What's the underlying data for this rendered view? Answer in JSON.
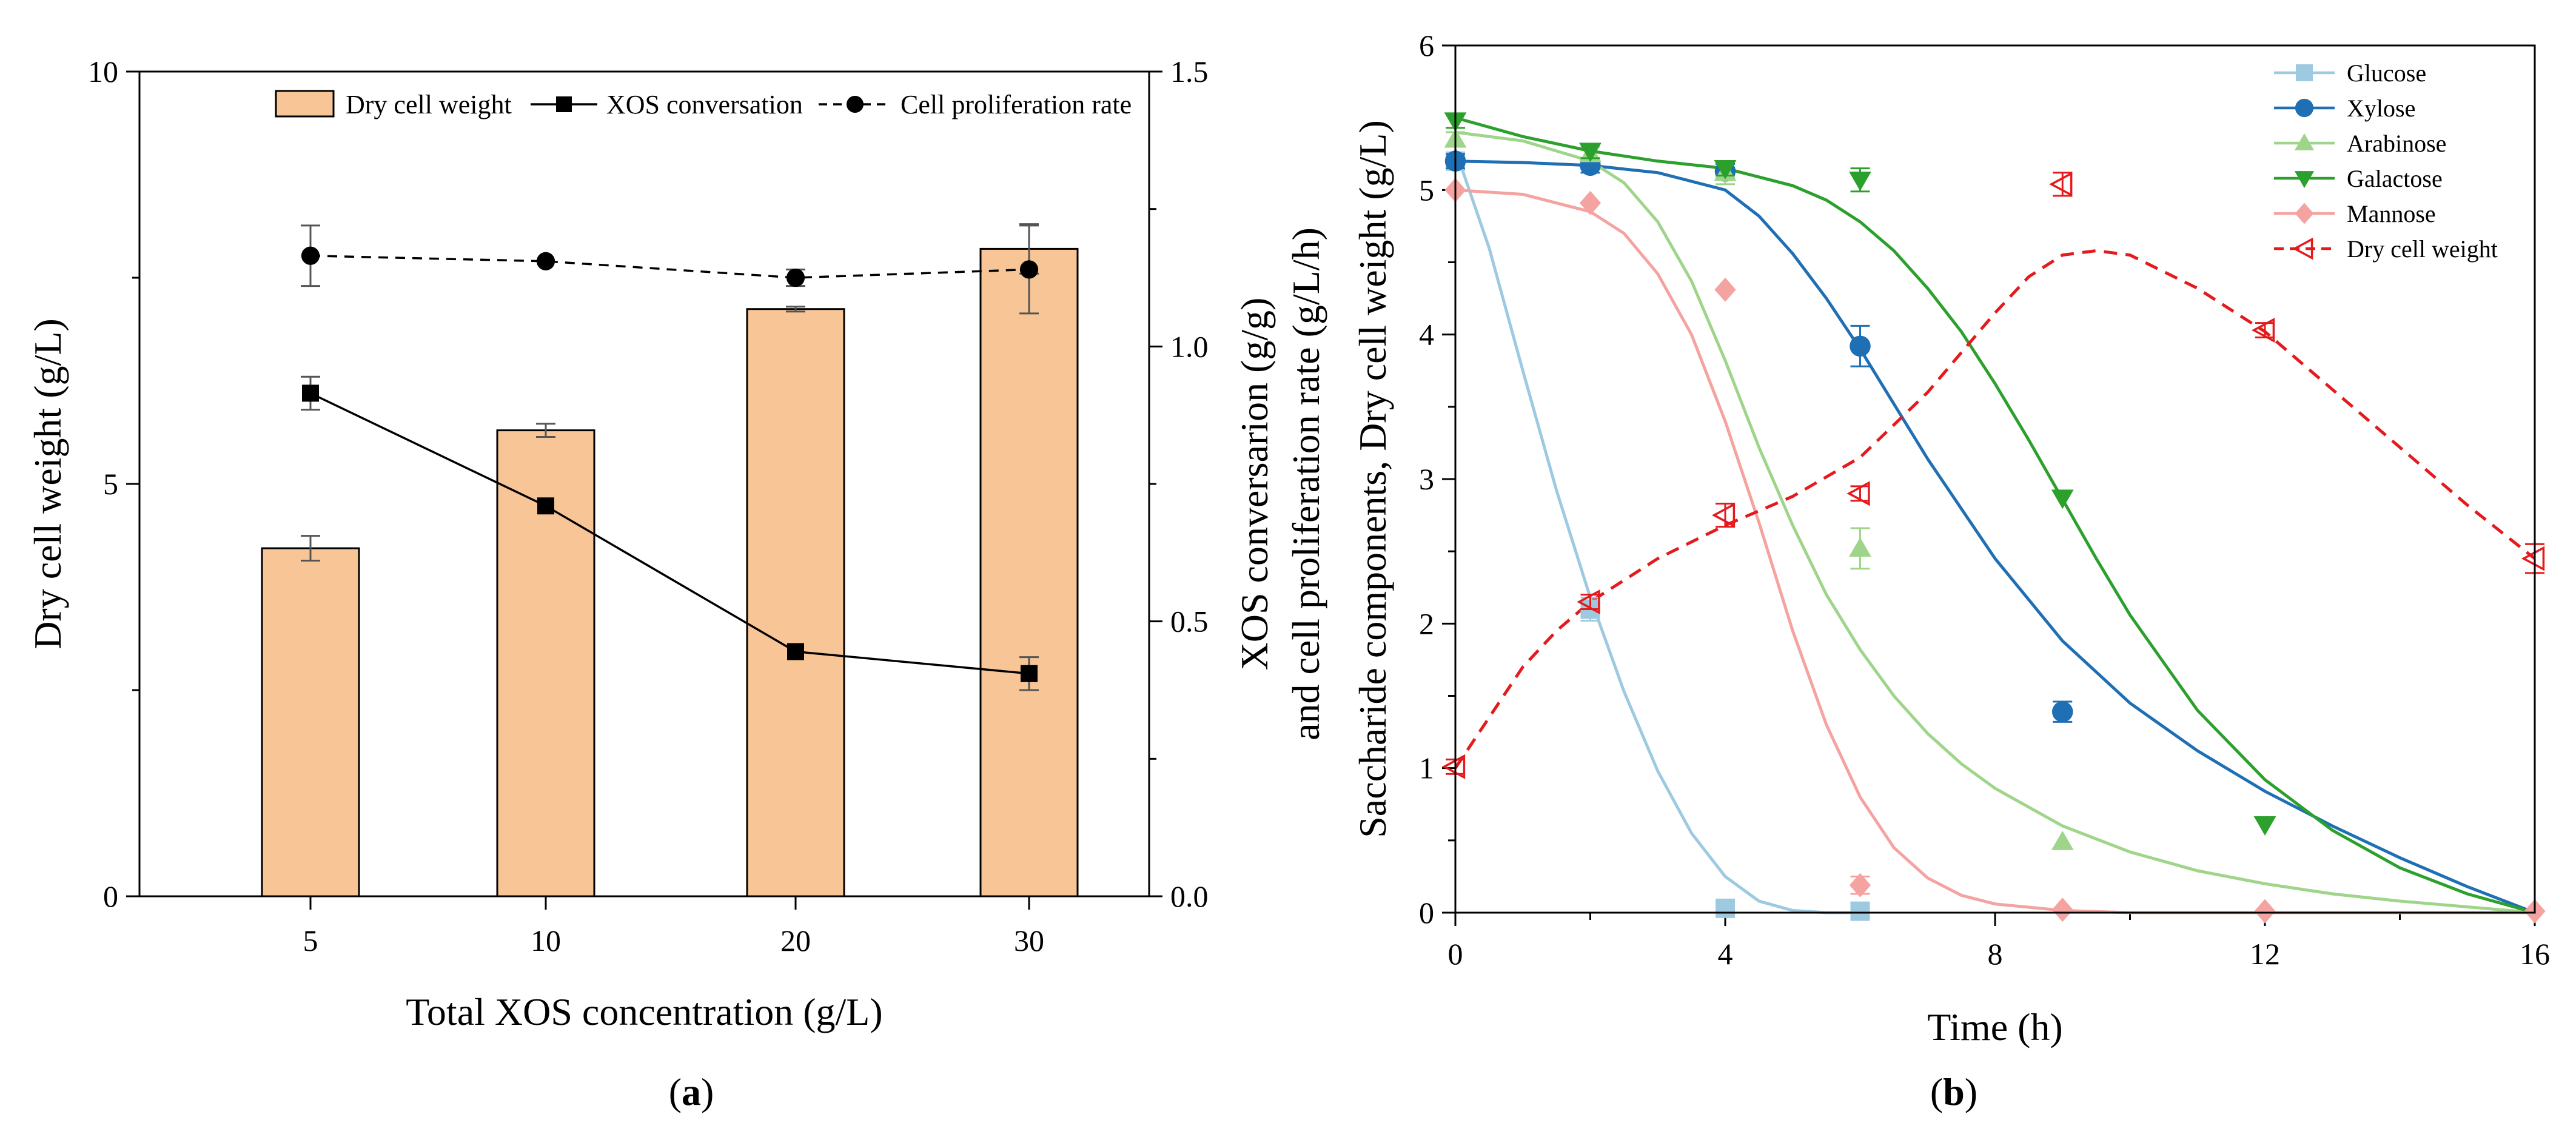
{
  "chart_data": [
    {
      "panel": "(a)",
      "panel_letter": "a",
      "type": "bar",
      "categories": [
        "5",
        "10",
        "20",
        "30"
      ],
      "xlabel": "Total XOS concentration (g/L)",
      "ylabel": "Dry cell weight (g/L)",
      "ylim": [
        0,
        10
      ],
      "yticks": [
        "0",
        "5",
        "10"
      ],
      "y2label_line1": "XOS conversarion (g/g)",
      "y2label_line2": "and cell proliferation rate (g/L/h)",
      "y2lim": [
        0,
        1.5
      ],
      "y2ticks": [
        "0.0",
        "0.5",
        "1.0",
        "1.5"
      ],
      "series": [
        {
          "name": "Dry cell weight",
          "kind": "bar",
          "axis": "left",
          "color": "#f8c596",
          "values": [
            4.22,
            5.65,
            7.12,
            7.85
          ],
          "errors": [
            0.15,
            0.08,
            0.03,
            0.3
          ]
        },
        {
          "name": "XOS conversation",
          "kind": "line",
          "axis": "right",
          "style": "solid",
          "marker": "square",
          "color": "#000000",
          "values": [
            0.915,
            0.71,
            0.445,
            0.405
          ],
          "errors": [
            0.03,
            0.0,
            0.0,
            0.03
          ]
        },
        {
          "name": "Cell proliferation rate",
          "kind": "line",
          "axis": "right",
          "style": "dashed",
          "marker": "circle",
          "color": "#000000",
          "values": [
            1.165,
            1.155,
            1.125,
            1.14
          ],
          "errors": [
            0.055,
            0.0,
            0.015,
            0.08
          ]
        }
      ],
      "legend_position": "top"
    },
    {
      "panel": "(b)",
      "panel_letter": "b",
      "type": "scatter",
      "xlabel": "Time (h)",
      "ylabel": "Saccharide components, Dry cell weight (g/L)",
      "xlim": [
        0,
        16
      ],
      "ylim": [
        0,
        6
      ],
      "xticks": [
        "0",
        "4",
        "8",
        "12",
        "16"
      ],
      "yticks": [
        "0",
        "1",
        "2",
        "3",
        "4",
        "5",
        "6"
      ],
      "legend_position": "top-right",
      "series": [
        {
          "name": "Glucose",
          "color": "#9ecae1",
          "marker": "square",
          "x": [
            0,
            2,
            4,
            6
          ],
          "y": [
            5.2,
            2.1,
            0.03,
            0.01
          ],
          "errors": [
            0.05,
            0.08,
            0.0,
            0.0
          ],
          "fit_x": [
            0,
            0.5,
            1,
            1.5,
            2,
            2.5,
            3,
            3.5,
            4,
            4.5,
            5,
            5.5,
            6
          ],
          "fit_y": [
            5.28,
            4.6,
            3.75,
            2.92,
            2.18,
            1.53,
            0.98,
            0.55,
            0.25,
            0.08,
            0.015,
            0.0,
            0.0
          ]
        },
        {
          "name": "Xylose",
          "color": "#1f6fb4",
          "marker": "circle",
          "x": [
            0,
            2,
            4,
            6,
            9
          ],
          "y": [
            5.2,
            5.17,
            5.13,
            3.92,
            1.39
          ],
          "errors": [
            0.05,
            0.05,
            0.05,
            0.14,
            0.07
          ],
          "fit_x": [
            0,
            1,
            2,
            3,
            4,
            4.5,
            5,
            5.5,
            6,
            6.5,
            7,
            8,
            9,
            10,
            11,
            12,
            13,
            14,
            15,
            16
          ],
          "fit_y": [
            5.2,
            5.19,
            5.17,
            5.12,
            5.0,
            4.82,
            4.56,
            4.25,
            3.9,
            3.52,
            3.14,
            2.45,
            1.88,
            1.45,
            1.12,
            0.84,
            0.6,
            0.38,
            0.18,
            0.0
          ]
        },
        {
          "name": "Arabinose",
          "color": "#9fd58a",
          "marker": "triangle-up",
          "x": [
            0,
            2,
            4,
            6,
            9
          ],
          "y": [
            5.35,
            5.25,
            5.12,
            2.52,
            0.49
          ],
          "errors": [
            0.05,
            0.05,
            0.08,
            0.14,
            0.0
          ],
          "fit_x": [
            0,
            1,
            2,
            2.5,
            3,
            3.5,
            4,
            4.5,
            5,
            5.5,
            6,
            6.5,
            7,
            7.5,
            8,
            9,
            10,
            11,
            12,
            13,
            14,
            15,
            16
          ],
          "fit_y": [
            5.4,
            5.34,
            5.2,
            5.05,
            4.78,
            4.37,
            3.82,
            3.22,
            2.68,
            2.2,
            1.82,
            1.5,
            1.24,
            1.03,
            0.86,
            0.6,
            0.42,
            0.29,
            0.2,
            0.13,
            0.08,
            0.04,
            0.0
          ]
        },
        {
          "name": "Galactose",
          "color": "#2ca02c",
          "marker": "triangle-down",
          "x": [
            0,
            2,
            4,
            6,
            9,
            12
          ],
          "y": [
            5.48,
            5.27,
            5.15,
            5.07,
            2.87,
            0.61
          ],
          "errors": [
            0.05,
            0.05,
            0.05,
            0.08,
            0.0,
            0.0
          ],
          "fit_x": [
            0,
            1,
            2,
            3,
            4,
            5,
            5.5,
            6,
            6.5,
            7,
            7.5,
            8,
            8.5,
            9,
            9.5,
            10,
            11,
            12,
            13,
            14,
            15,
            16
          ],
          "fit_y": [
            5.5,
            5.37,
            5.27,
            5.2,
            5.15,
            5.03,
            4.93,
            4.78,
            4.58,
            4.32,
            4.02,
            3.66,
            3.27,
            2.86,
            2.45,
            2.06,
            1.4,
            0.92,
            0.57,
            0.31,
            0.13,
            0.0
          ]
        },
        {
          "name": "Mannose",
          "color": "#f4a3a0",
          "marker": "diamond",
          "x": [
            0,
            2,
            4,
            6,
            9,
            12,
            16
          ],
          "y": [
            5.0,
            4.91,
            4.31,
            0.19,
            0.02,
            0.01,
            0.01
          ],
          "errors": [
            0.0,
            0.0,
            0.0,
            0.06,
            0.0,
            0.0,
            0.0
          ],
          "fit_x": [
            0,
            1,
            2,
            2.5,
            3,
            3.5,
            4,
            4.5,
            5,
            5.5,
            6,
            6.5,
            7,
            7.5,
            8,
            9,
            10,
            12,
            16
          ],
          "fit_y": [
            5.0,
            4.97,
            4.85,
            4.7,
            4.42,
            4.0,
            3.4,
            2.7,
            1.95,
            1.3,
            0.8,
            0.45,
            0.24,
            0.12,
            0.06,
            0.015,
            0.0,
            0.0,
            0.0
          ]
        },
        {
          "name": "Dry cell weight",
          "color": "#e41a1c",
          "marker": "triangle-left",
          "x": [
            0,
            2,
            4,
            6,
            9,
            12,
            16
          ],
          "y": [
            1.01,
            2.15,
            2.75,
            2.9,
            5.04,
            4.03,
            2.45
          ],
          "errors": [
            0.05,
            0.05,
            0.08,
            0.05,
            0.08,
            0.05,
            0.1
          ],
          "fit_x": [
            0,
            0.5,
            1,
            1.5,
            2,
            3,
            4,
            5,
            6,
            7,
            8,
            8.5,
            9,
            9.5,
            10,
            11,
            12,
            13,
            14,
            15,
            16
          ],
          "fit_y": [
            1.0,
            1.35,
            1.7,
            1.95,
            2.15,
            2.45,
            2.68,
            2.88,
            3.15,
            3.6,
            4.15,
            4.4,
            4.55,
            4.58,
            4.55,
            4.32,
            4.02,
            3.62,
            3.22,
            2.82,
            2.45
          ]
        }
      ]
    }
  ]
}
